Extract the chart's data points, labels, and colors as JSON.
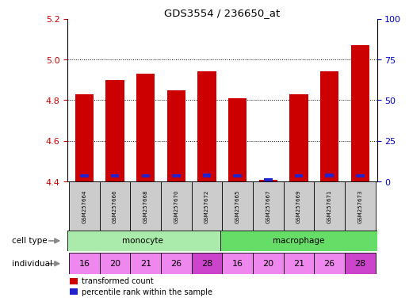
{
  "title": "GDS3554 / 236650_at",
  "samples": [
    "GSM257664",
    "GSM257666",
    "GSM257668",
    "GSM257670",
    "GSM257672",
    "GSM257665",
    "GSM257667",
    "GSM257669",
    "GSM257671",
    "GSM257673"
  ],
  "transformed_counts": [
    4.83,
    4.9,
    4.93,
    4.85,
    4.94,
    4.81,
    4.41,
    4.83,
    4.94,
    5.07
  ],
  "percentile_ranks_pct": [
    3.5,
    3.5,
    3.5,
    3.5,
    3.8,
    3.5,
    1.0,
    3.5,
    3.55,
    3.5
  ],
  "bar_bottom": 4.4,
  "ylim_left": [
    4.4,
    5.2
  ],
  "ylim_right": [
    0,
    100
  ],
  "yticks_left": [
    4.4,
    4.6,
    4.8,
    5.0,
    5.2
  ],
  "yticks_right": [
    0,
    25,
    50,
    75,
    100
  ],
  "cell_types": [
    "monocyte",
    "monocyte",
    "monocyte",
    "monocyte",
    "monocyte",
    "macrophage",
    "macrophage",
    "macrophage",
    "macrophage",
    "macrophage"
  ],
  "individuals": [
    "16",
    "20",
    "21",
    "26",
    "28",
    "16",
    "20",
    "21",
    "26",
    "28"
  ],
  "monocyte_color": "#aaeaaa",
  "macrophage_color": "#66dd66",
  "individual_colors_light": "#ee88ee",
  "individual_colors_dark": "#cc44cc",
  "individual_dark_indices": [
    4,
    9
  ],
  "red_color": "#cc0000",
  "blue_color": "#2222cc",
  "label_color_left": "#cc0000",
  "label_color_right": "#0000cc",
  "legend_red": "transformed count",
  "legend_blue": "percentile rank within the sample",
  "bar_width": 0.6,
  "grid_lines": [
    4.6,
    4.8,
    5.0
  ],
  "sample_box_color": "#cccccc"
}
